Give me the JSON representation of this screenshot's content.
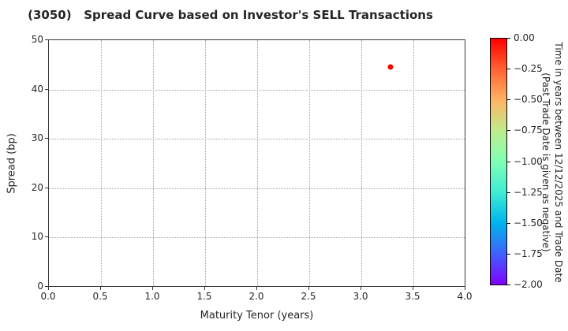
{
  "title": "(3050)   Spread Curve based on Investor's SELL Transactions",
  "chart_data": {
    "type": "scatter",
    "title": "(3050)   Spread Curve based on Investor's SELL Transactions",
    "xlabel": "Maturity Tenor (years)",
    "ylabel": "Spread (bp)",
    "xlim": [
      0.0,
      4.0
    ],
    "ylim": [
      0,
      50
    ],
    "xticks": [
      0.0,
      0.5,
      1.0,
      1.5,
      2.0,
      2.5,
      3.0,
      3.5,
      4.0
    ],
    "xtick_labels": [
      "0.0",
      "0.5",
      "1.0",
      "1.5",
      "2.0",
      "2.5",
      "3.0",
      "3.5",
      "4.0"
    ],
    "yticks": [
      0,
      10,
      20,
      30,
      40,
      50
    ],
    "ytick_labels": [
      "0",
      "10",
      "20",
      "30",
      "40",
      "50"
    ],
    "grid": true,
    "grid_style": "dotted",
    "legend": "none",
    "points": [
      {
        "x": 3.28,
        "y": 44.6,
        "color": "#ff0000",
        "colorbar_value": 0.0
      }
    ],
    "colorbar": {
      "label_line1": "Time in years between 12/12/2025 and Trade Date",
      "label_line2": "(Past Trade Date is given as negative)",
      "tick_labels": [
        "0.00",
        "−0.25",
        "−0.50",
        "−0.75",
        "−1.00",
        "−1.25",
        "−1.50",
        "−1.75",
        "−2.00"
      ],
      "range_top": 0.0,
      "range_bottom": -2.0,
      "colormap": "rainbow",
      "gradient_stops_top_to_bottom": [
        "#ff0000",
        "#ff6232",
        "#ffb462",
        "#bfec8e",
        "#80ffb4",
        "#40ecd4",
        "#00b4ec",
        "#4062fa",
        "#8000ff"
      ]
    }
  }
}
